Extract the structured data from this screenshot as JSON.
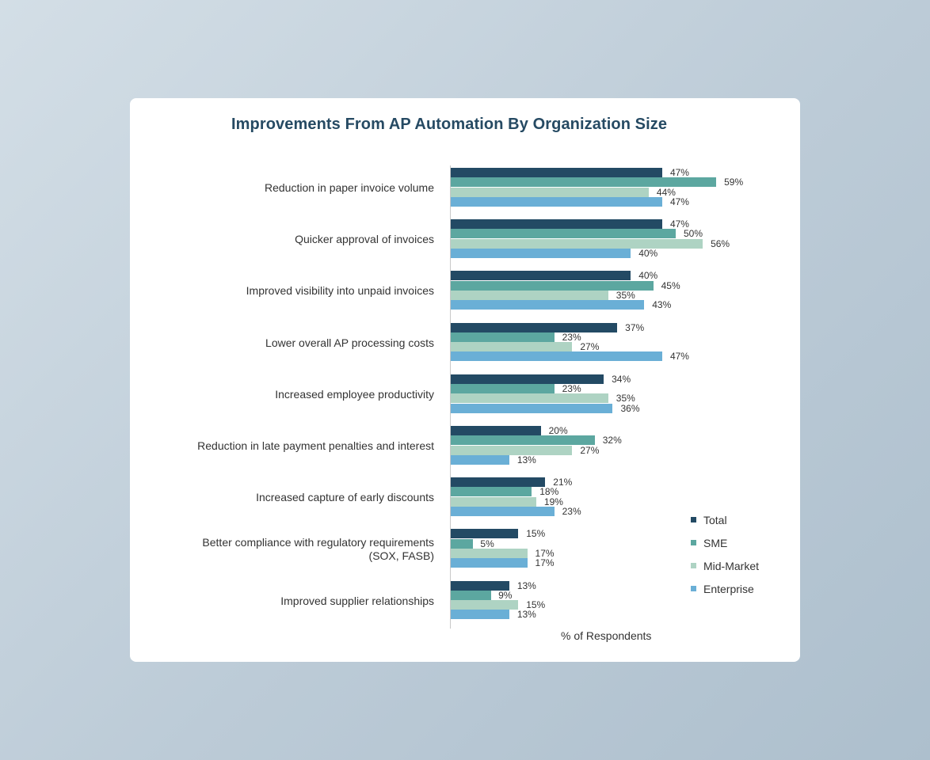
{
  "chart_data": {
    "type": "bar",
    "orientation": "horizontal",
    "title": "Improvements From AP Automation By Organization Size",
    "xlabel": "% of Respondents",
    "ylabel": "",
    "xlim": [
      0,
      60
    ],
    "grid": false,
    "legend_position": "right-bottom",
    "categories": [
      "Reduction in paper invoice volume",
      "Quicker approval of invoices",
      "Improved visibility into unpaid invoices",
      "Lower overall AP processing costs",
      "Increased employee productivity",
      "Reduction in late payment penalties and interest",
      "Increased capture of early discounts",
      "Better compliance with regulatory requirements (SOX, FASB)",
      "Improved supplier relationships"
    ],
    "series": [
      {
        "name": "Total",
        "color": "#234a64",
        "values": [
          47,
          47,
          40,
          37,
          34,
          20,
          21,
          15,
          13
        ]
      },
      {
        "name": "SME",
        "color": "#5ca7a0",
        "values": [
          59,
          50,
          45,
          23,
          23,
          32,
          18,
          5,
          9
        ]
      },
      {
        "name": "Mid-Market",
        "color": "#aed3c3",
        "values": [
          44,
          56,
          35,
          27,
          35,
          27,
          19,
          17,
          15
        ]
      },
      {
        "name": "Enterprise",
        "color": "#6aafd6",
        "values": [
          47,
          40,
          43,
          47,
          36,
          13,
          23,
          17,
          13
        ]
      }
    ]
  },
  "labels": {
    "title": "Improvements From AP Automation By Organization Size",
    "xlabel": "% of Respondents",
    "cat_lines": [
      [
        "Reduction in paper invoice volume"
      ],
      [
        "Quicker approval of invoices"
      ],
      [
        "Improved visibility into unpaid invoices"
      ],
      [
        "Lower overall AP processing costs"
      ],
      [
        "Increased employee productivity"
      ],
      [
        "Reduction in late payment penalties and interest"
      ],
      [
        "Increased capture of early discounts"
      ],
      [
        "Better compliance with regulatory requirements",
        "(SOX, FASB)"
      ],
      [
        "Improved supplier relationships"
      ]
    ]
  }
}
